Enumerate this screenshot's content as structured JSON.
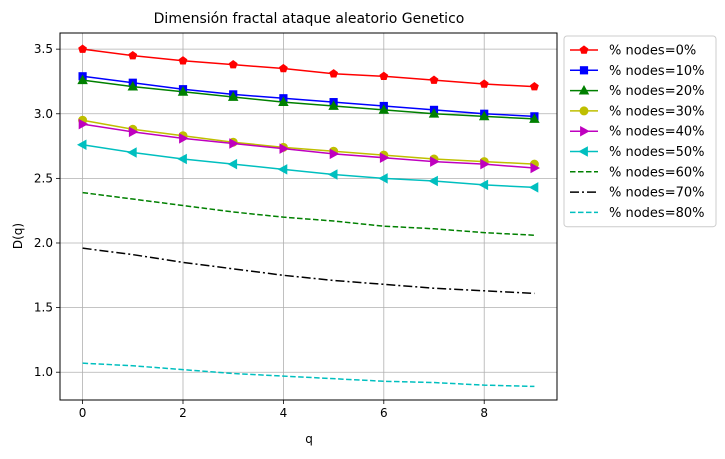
{
  "chart_data": {
    "type": "line",
    "title": "Dimensión fractal ataque aleatorio Genetico",
    "xlabel": "q",
    "ylabel": "D(q)",
    "xlim": [
      -0.45,
      9.45
    ],
    "ylim": [
      0.785,
      3.625
    ],
    "xticks": [
      0,
      2,
      4,
      6,
      8
    ],
    "yticks": [
      1.0,
      1.5,
      2.0,
      2.5,
      3.0,
      3.5
    ],
    "grid": true,
    "legend_position": "outside-right",
    "x": [
      0,
      1,
      2,
      3,
      4,
      5,
      6,
      7,
      8,
      9
    ],
    "series": [
      {
        "name": "% nodes=0%",
        "color": "#ff0000",
        "marker": "pentagon",
        "dash": "solid",
        "values": [
          3.5,
          3.45,
          3.41,
          3.38,
          3.35,
          3.31,
          3.29,
          3.26,
          3.23,
          3.21
        ]
      },
      {
        "name": "% nodes=10%",
        "color": "#0000ff",
        "marker": "square",
        "dash": "solid",
        "values": [
          3.29,
          3.24,
          3.19,
          3.15,
          3.12,
          3.09,
          3.06,
          3.03,
          3.0,
          2.98
        ]
      },
      {
        "name": "% nodes=20%",
        "color": "#008000",
        "marker": "triangle-up",
        "dash": "solid",
        "values": [
          3.26,
          3.21,
          3.17,
          3.13,
          3.09,
          3.06,
          3.03,
          3.0,
          2.98,
          2.96
        ]
      },
      {
        "name": "% nodes=30%",
        "color": "#bfbf00",
        "marker": "circle",
        "dash": "solid",
        "values": [
          2.95,
          2.88,
          2.83,
          2.78,
          2.74,
          2.71,
          2.68,
          2.65,
          2.63,
          2.61
        ]
      },
      {
        "name": "% nodes=40%",
        "color": "#bf00bf",
        "marker": "triangle-right",
        "dash": "solid",
        "values": [
          2.92,
          2.86,
          2.81,
          2.77,
          2.73,
          2.69,
          2.66,
          2.63,
          2.61,
          2.58
        ]
      },
      {
        "name": "% nodes=50%",
        "color": "#00bfbf",
        "marker": "triangle-left",
        "dash": "solid",
        "values": [
          2.76,
          2.7,
          2.65,
          2.61,
          2.57,
          2.53,
          2.5,
          2.48,
          2.45,
          2.43
        ]
      },
      {
        "name": "% nodes=60%",
        "color": "#008000",
        "marker": "none",
        "dash": "dashed",
        "values": [
          2.39,
          2.34,
          2.29,
          2.24,
          2.2,
          2.17,
          2.13,
          2.11,
          2.08,
          2.06
        ]
      },
      {
        "name": "% nodes=70%",
        "color": "#000000",
        "marker": "none",
        "dash": "dashdot",
        "values": [
          1.96,
          1.91,
          1.85,
          1.8,
          1.75,
          1.71,
          1.68,
          1.65,
          1.63,
          1.61
        ]
      },
      {
        "name": "% nodes=80%",
        "color": "#00bfbf",
        "marker": "none",
        "dash": "dashed",
        "values": [
          1.07,
          1.05,
          1.02,
          0.99,
          0.97,
          0.95,
          0.93,
          0.92,
          0.9,
          0.89
        ]
      }
    ]
  }
}
